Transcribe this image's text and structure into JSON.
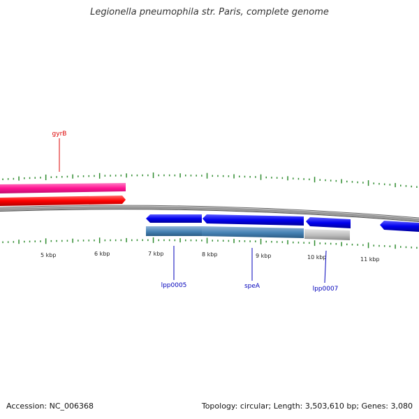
{
  "title": "Legionella pneumophila str. Paris, complete genome",
  "footer": {
    "accession": "Accession: NC_006368",
    "summary": "Topology: circular; Length: 3,503,610 bp; Genes: 3,080"
  },
  "colors": {
    "backbone": "#888888",
    "tick": "#2e8b2e",
    "forward_gene": "#ff1493",
    "forward_cds": "#ff0000",
    "reverse_gene": "#0000ee",
    "reverse_cds": "#4682b4",
    "pseudo": "#b8b8b8",
    "label_red": "#dd0000",
    "label_blue": "#0000bb"
  },
  "scale_labels": [
    "5 kbp",
    "6 kbp",
    "7 kbp",
    "8 kbp",
    "9 kbp",
    "10 kbp",
    "11 kbp"
  ],
  "gene_labels": [
    {
      "text": "gyrB",
      "strand": "forward"
    },
    {
      "text": "lpp0005",
      "strand": "reverse"
    },
    {
      "text": "speA",
      "strand": "reverse"
    },
    {
      "text": "lpp0007",
      "strand": "reverse"
    }
  ]
}
